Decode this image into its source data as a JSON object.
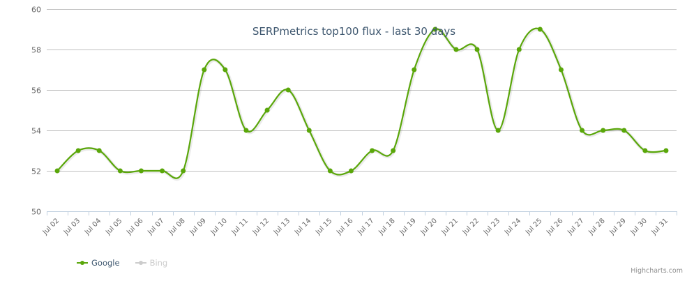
{
  "chart_data": {
    "type": "line",
    "title": "SERPmetrics top100 flux - last 30 days",
    "xlabel": "",
    "ylabel": "",
    "categories": [
      "Jul 02",
      "Jul 03",
      "Jul 04",
      "Jul 05",
      "Jul 06",
      "Jul 07",
      "Jul 08",
      "Jul 09",
      "Jul 10",
      "Jul 11",
      "Jul 12",
      "Jul 13",
      "Jul 14",
      "Jul 15",
      "Jul 16",
      "Jul 17",
      "Jul 18",
      "Jul 19",
      "Jul 20",
      "Jul 21",
      "Jul 22",
      "Jul 23",
      "Jul 24",
      "Jul 25",
      "Jul 26",
      "Jul 27",
      "Jul 28",
      "Jul 29",
      "Jul 30",
      "Jul 31"
    ],
    "series": [
      {
        "name": "Google",
        "color": "#5aa70a",
        "visible": true,
        "values": [
          52,
          53,
          53,
          52,
          52,
          52,
          52,
          57,
          57,
          54,
          55,
          56,
          54,
          52,
          52,
          53,
          53,
          57,
          59,
          58,
          58,
          54,
          58,
          59,
          57,
          54,
          54,
          54,
          53,
          53
        ]
      },
      {
        "name": "Bing",
        "color": "#cccccc",
        "visible": false,
        "values": []
      }
    ],
    "ylim": [
      50,
      60
    ],
    "yticks": [
      50,
      52,
      54,
      56,
      58,
      60
    ],
    "grid": true,
    "smooth": true,
    "legend_position": "bottom-left"
  },
  "legend": {
    "items": [
      {
        "label": "Google",
        "color": "#5aa70a",
        "label_color": "#3e576f"
      },
      {
        "label": "Bing",
        "color": "#cccccc",
        "label_color": "#cccccc"
      }
    ]
  },
  "credits": "Highcharts.com"
}
